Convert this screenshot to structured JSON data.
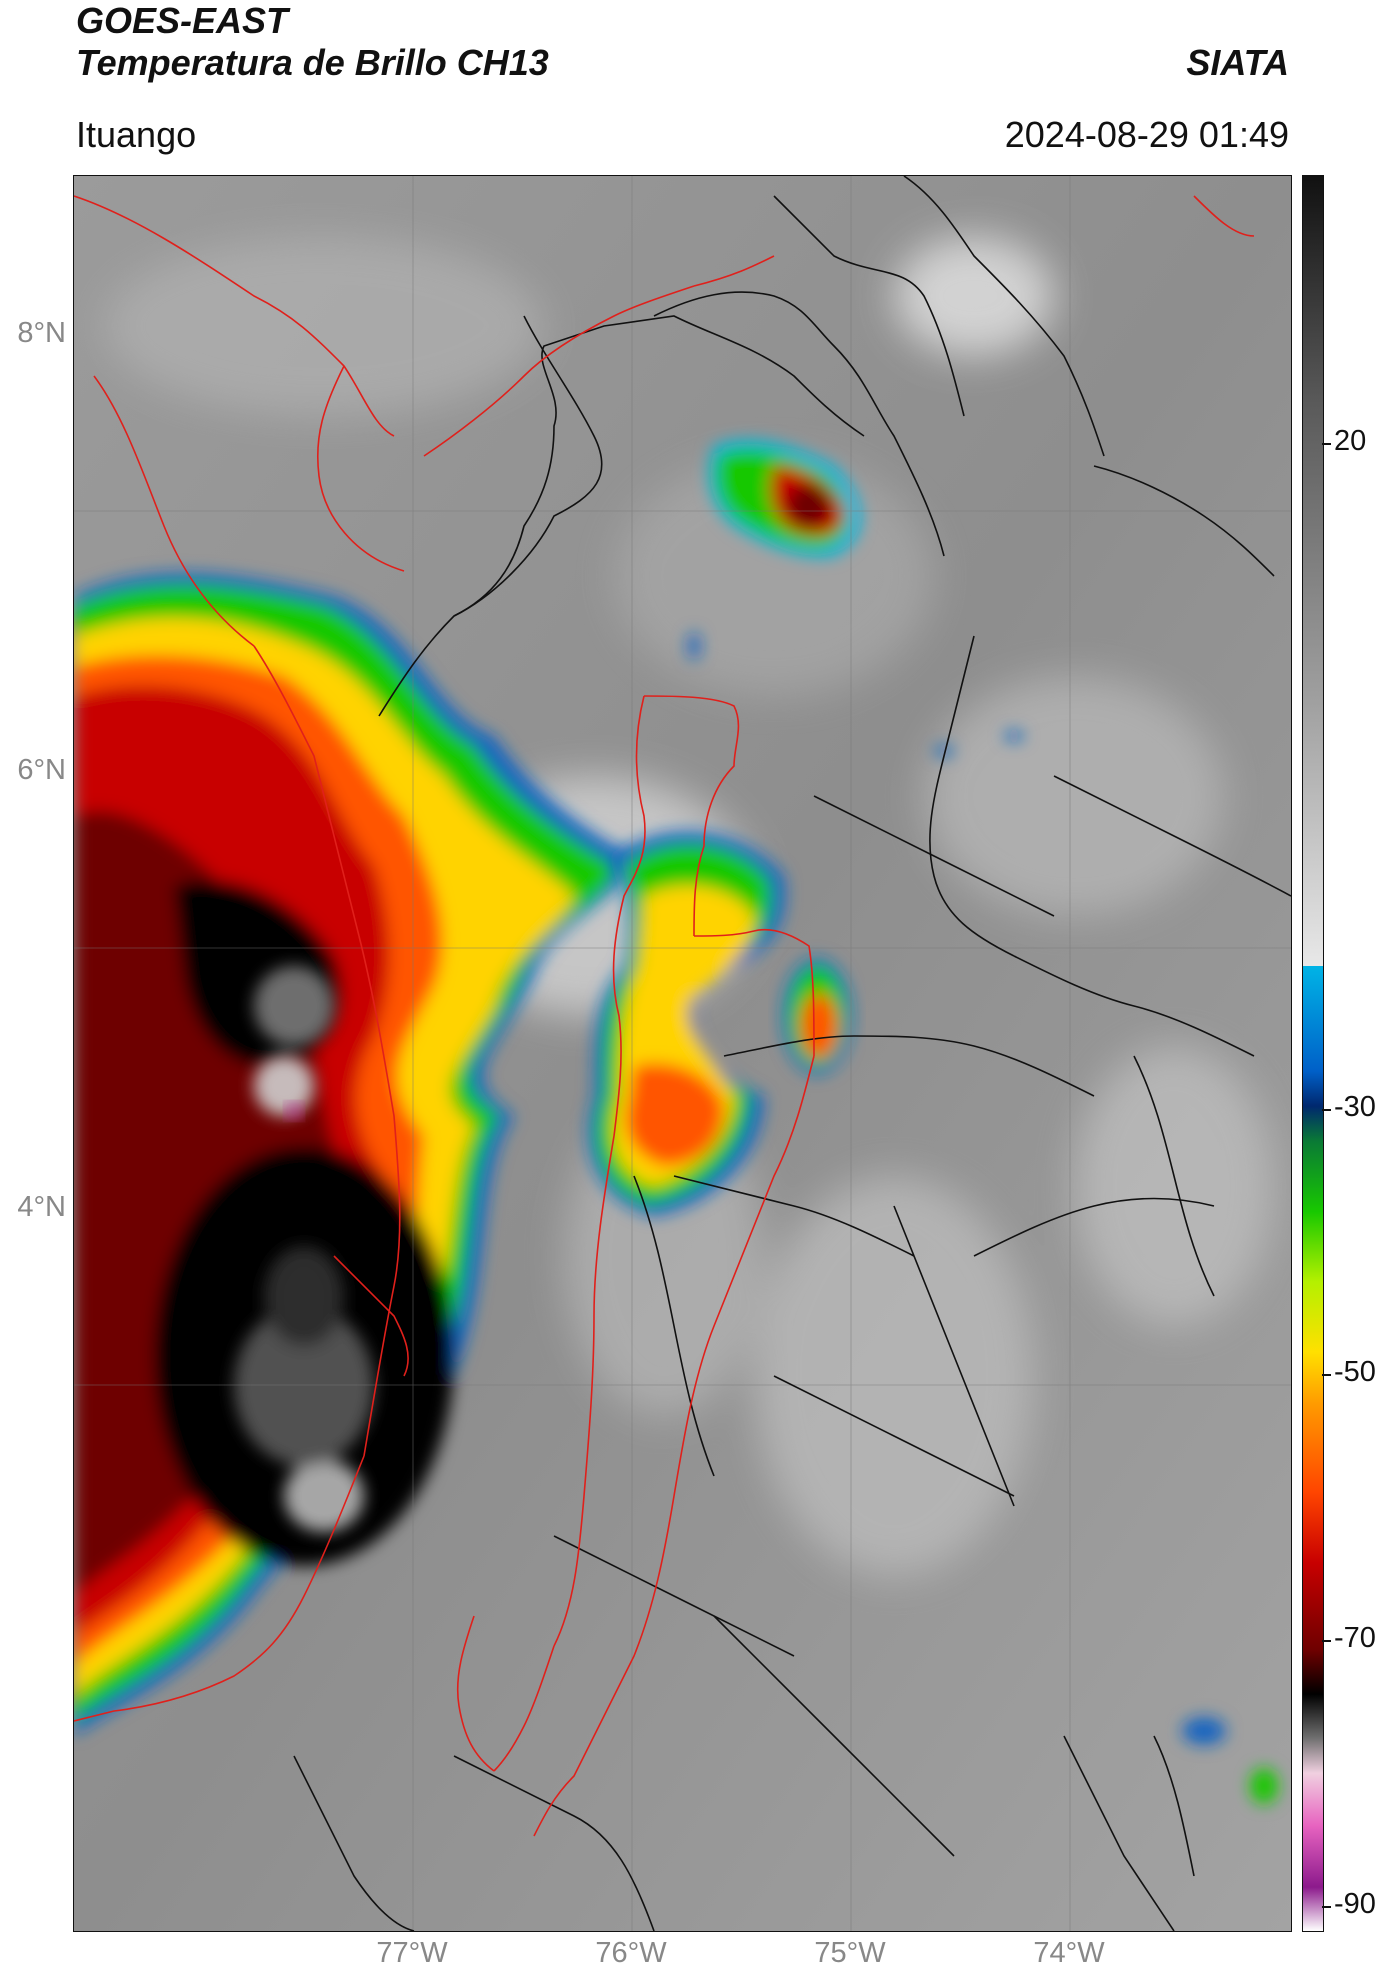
{
  "header": {
    "satellite": "GOES-EAST",
    "product": "Temperatura de Brillo CH13",
    "organization": "SIATA",
    "location": "Ituango",
    "datetime": "2024-08-29 01:49"
  },
  "map": {
    "lat_labels": [
      "8°N",
      "6°N",
      "4°N"
    ],
    "lon_labels": [
      "77°W",
      "76°W",
      "75°W",
      "74°W"
    ],
    "colors": {
      "background_clouds": "#8a8a8a",
      "boundaries_admin": "#111111",
      "boundaries_highlight": "#e0201b",
      "gridlines": "#777777"
    }
  },
  "colorbar": {
    "ticks": [
      "20",
      "-30",
      "-50",
      "-70",
      "-90"
    ],
    "colors": [
      "#ffffff",
      "#8c1a8c",
      "#e763c0",
      "#f0d0e0",
      "#6f6f6f",
      "#000000",
      "#6e0000",
      "#c80000",
      "#ff4500",
      "#ff9a00",
      "#ffe000",
      "#b4f000",
      "#18c800",
      "#0a7a35",
      "#00286e",
      "#0060c8",
      "#00b4e6",
      "#e8e8e8",
      "#a0a0a0",
      "#5a5a5a",
      "#111111"
    ]
  }
}
